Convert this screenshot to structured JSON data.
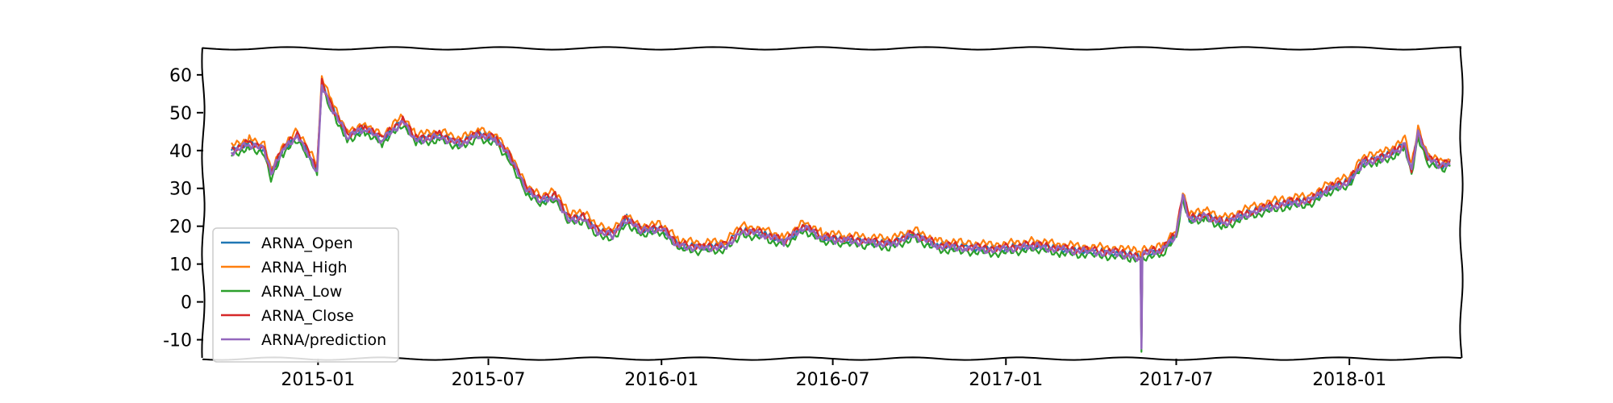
{
  "chart_data": {
    "type": "line",
    "title": "",
    "xlabel": "",
    "ylabel": "",
    "xlim": [
      "2014-09-01",
      "2018-04-30"
    ],
    "ylim": [
      -15,
      67
    ],
    "grid": false,
    "legend": "lower-left",
    "x_ticks": [
      "2015-01",
      "2015-07",
      "2016-01",
      "2016-07",
      "2017-01",
      "2017-07",
      "2018-01"
    ],
    "y_ticks": [
      60,
      50,
      40,
      30,
      20,
      10,
      0,
      -10
    ],
    "anchors": [
      [
        "2014-10-01",
        40.0
      ],
      [
        "2014-10-20",
        42.0
      ],
      [
        "2014-11-05",
        40.5
      ],
      [
        "2014-11-12",
        34.0
      ],
      [
        "2014-11-25",
        40.5
      ],
      [
        "2014-12-10",
        44.0
      ],
      [
        "2014-12-20",
        40.0
      ],
      [
        "2014-12-31",
        35.0
      ],
      [
        "2015-01-05",
        58.0
      ],
      [
        "2015-01-15",
        52.0
      ],
      [
        "2015-02-01",
        44.0
      ],
      [
        "2015-02-20",
        46.0
      ],
      [
        "2015-03-10",
        43.0
      ],
      [
        "2015-04-01",
        48.0
      ],
      [
        "2015-04-15",
        43.0
      ],
      [
        "2015-05-10",
        44.0
      ],
      [
        "2015-06-01",
        42.0
      ],
      [
        "2015-06-20",
        44.5
      ],
      [
        "2015-07-10",
        43.0
      ],
      [
        "2015-07-25",
        38.0
      ],
      [
        "2015-08-10",
        30.0
      ],
      [
        "2015-08-25",
        27.0
      ],
      [
        "2015-09-10",
        28.0
      ],
      [
        "2015-09-25",
        22.0
      ],
      [
        "2015-10-10",
        22.5
      ],
      [
        "2015-10-25",
        19.0
      ],
      [
        "2015-11-10",
        18.0
      ],
      [
        "2015-11-25",
        22.0
      ],
      [
        "2015-12-10",
        19.0
      ],
      [
        "2016-01-01",
        19.5
      ],
      [
        "2016-01-20",
        15.0
      ],
      [
        "2016-02-15",
        14.5
      ],
      [
        "2016-03-10",
        15.0
      ],
      [
        "2016-03-25",
        19.0
      ],
      [
        "2016-04-20",
        18.0
      ],
      [
        "2016-05-10",
        16.0
      ],
      [
        "2016-06-01",
        20.0
      ],
      [
        "2016-06-20",
        17.0
      ],
      [
        "2016-07-15",
        16.5
      ],
      [
        "2016-08-10",
        16.0
      ],
      [
        "2016-09-01",
        15.5
      ],
      [
        "2016-09-25",
        18.0
      ],
      [
        "2016-10-20",
        15.0
      ],
      [
        "2016-11-20",
        14.5
      ],
      [
        "2016-12-20",
        14.0
      ],
      [
        "2017-02-01",
        15.0
      ],
      [
        "2017-03-01",
        14.0
      ],
      [
        "2017-04-01",
        13.5
      ],
      [
        "2017-05-01",
        13.0
      ],
      [
        "2017-05-15",
        12.5
      ],
      [
        "2017-05-24",
        12.0
      ],
      [
        "2017-05-25",
        -12.0
      ],
      [
        "2017-05-26",
        13.0
      ],
      [
        "2017-06-15",
        13.5
      ],
      [
        "2017-07-01",
        18.0
      ],
      [
        "2017-07-08",
        28.0
      ],
      [
        "2017-07-15",
        22.0
      ],
      [
        "2017-08-01",
        23.0
      ],
      [
        "2017-08-20",
        21.0
      ],
      [
        "2017-09-20",
        24.0
      ],
      [
        "2017-10-20",
        26.0
      ],
      [
        "2017-11-20",
        27.0
      ],
      [
        "2017-12-10",
        30.0
      ],
      [
        "2018-01-01",
        32.0
      ],
      [
        "2018-01-15",
        37.0
      ],
      [
        "2018-02-01",
        38.0
      ],
      [
        "2018-02-20",
        40.0
      ],
      [
        "2018-03-01",
        42.0
      ],
      [
        "2018-03-08",
        35.0
      ],
      [
        "2018-03-15",
        45.0
      ],
      [
        "2018-03-25",
        38.0
      ],
      [
        "2018-04-10",
        36.0
      ],
      [
        "2018-04-18",
        37.0
      ]
    ],
    "series": [
      {
        "name": "ARNA_Open",
        "color": "#1f77b4",
        "offset": 0.0
      },
      {
        "name": "ARNA_High",
        "color": "#ff7f0e",
        "offset": 1.2
      },
      {
        "name": "ARNA_Low",
        "color": "#2ca02c",
        "offset": -1.2
      },
      {
        "name": "ARNA_Close",
        "color": "#d62728",
        "offset": 0.2
      },
      {
        "name": "ARNA/prediction",
        "color": "#9467bd",
        "offset": -0.3
      }
    ]
  }
}
